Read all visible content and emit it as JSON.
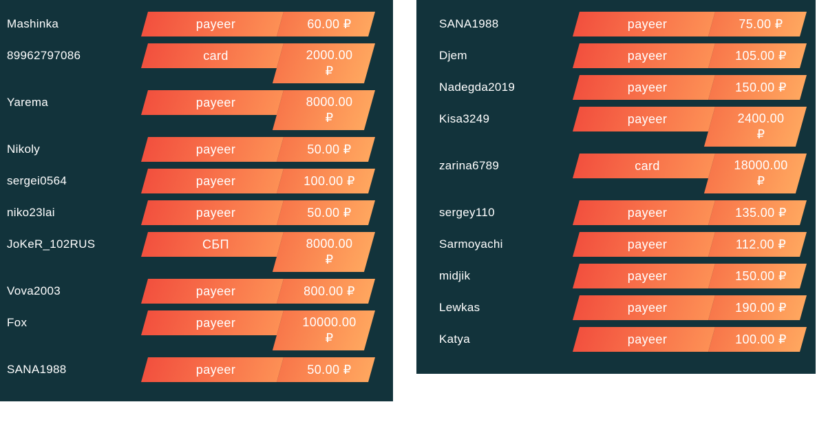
{
  "currency_symbol": "₽",
  "colors": {
    "panel_bg": "#12333b",
    "method_gradient_start": "#f2503e",
    "method_gradient_end": "#fd9055",
    "amount_gradient_start": "#f8764a",
    "amount_gradient_end": "#ffa75f",
    "text": "#ffffff"
  },
  "panels": [
    {
      "name": "left",
      "rows": [
        {
          "user": "Mashinka",
          "method": "payeer",
          "amount": "60.00 ₽"
        },
        {
          "user": "89962797086",
          "method": "card",
          "amount": "2000.00\n₽"
        },
        {
          "user": "Yarema",
          "method": "payeer",
          "amount": "8000.00\n₽"
        },
        {
          "user": "Nikoly",
          "method": "payeer",
          "amount": "50.00 ₽"
        },
        {
          "user": "sergei0564",
          "method": "payeer",
          "amount": "100.00 ₽"
        },
        {
          "user": "niko23lai",
          "method": "payeer",
          "amount": "50.00 ₽"
        },
        {
          "user": "JoKeR_102RUS",
          "method": "СБП",
          "amount": "8000.00\n₽"
        },
        {
          "user": "Vova2003",
          "method": "payeer",
          "amount": "800.00 ₽"
        },
        {
          "user": "Fox",
          "method": "payeer",
          "amount": "10000.00\n₽"
        },
        {
          "user": "SANA1988",
          "method": "payeer",
          "amount": "50.00 ₽"
        }
      ]
    },
    {
      "name": "right",
      "rows": [
        {
          "user": "SANA1988",
          "method": "payeer",
          "amount": "75.00 ₽"
        },
        {
          "user": "Djem",
          "method": "payeer",
          "amount": "105.00 ₽"
        },
        {
          "user": "Nadegda2019",
          "method": "payeer",
          "amount": "150.00 ₽"
        },
        {
          "user": "Kisa3249",
          "method": "payeer",
          "amount": "2400.00\n₽"
        },
        {
          "user": "zarina6789",
          "method": "card",
          "amount": "18000.00\n₽"
        },
        {
          "user": "sergey110",
          "method": "payeer",
          "amount": "135.00 ₽"
        },
        {
          "user": "Sarmoyachi",
          "method": "payeer",
          "amount": "112.00 ₽"
        },
        {
          "user": "midjik",
          "method": "payeer",
          "amount": "150.00 ₽"
        },
        {
          "user": "Lewkas",
          "method": "payeer",
          "amount": "190.00 ₽"
        },
        {
          "user": "Katya",
          "method": "payeer",
          "amount": "100.00 ₽"
        }
      ]
    }
  ]
}
